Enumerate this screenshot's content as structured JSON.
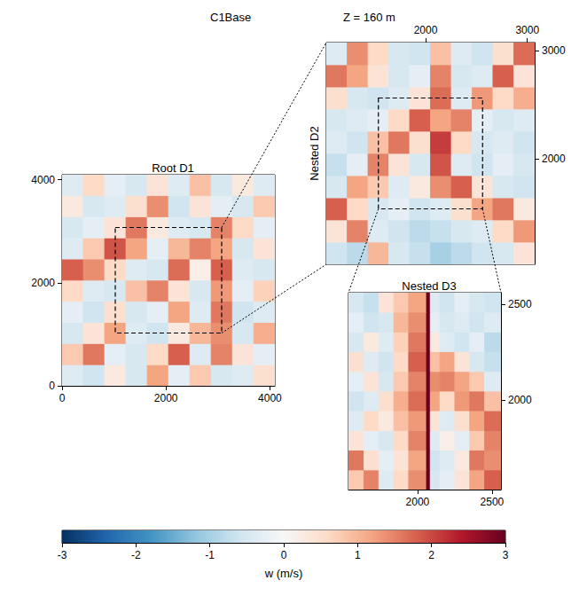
{
  "figure": {
    "title": "C1Base",
    "subtitle": "Z = 160 m"
  },
  "colorbar": {
    "label": "w (m/s)",
    "range": [
      -3,
      3
    ],
    "ticks": [
      -3,
      -2,
      -1,
      0,
      1,
      2,
      3
    ]
  },
  "chart_data": [
    {
      "type": "heatmap",
      "title": "Root D1",
      "xlim": [
        0,
        4096
      ],
      "ylim": [
        0,
        4096
      ],
      "xticks": [
        0,
        2000,
        4000
      ],
      "yticks": [
        0,
        2000,
        4000
      ],
      "x_edges": [
        0,
        410,
        820,
        1230,
        1640,
        2050,
        2460,
        2870,
        3280,
        3690,
        4096
      ],
      "y_edges": [
        0,
        410,
        820,
        1230,
        1640,
        2050,
        2460,
        2870,
        3280,
        3690,
        4096
      ],
      "w": [
        [
          -0.4,
          -0.6,
          0.3,
          -0.5,
          1.2,
          -0.3,
          0.8,
          -0.5,
          -0.4,
          0.5
        ],
        [
          0.8,
          1.6,
          -0.3,
          -0.5,
          0.6,
          1.8,
          -0.4,
          1.5,
          0.4,
          -0.3
        ],
        [
          -0.5,
          0.4,
          1.2,
          -0.4,
          -0.6,
          0.3,
          1.0,
          1.4,
          -0.5,
          1.1
        ],
        [
          -0.3,
          -0.6,
          0.5,
          -0.5,
          -0.3,
          1.2,
          -0.4,
          1.6,
          -0.6,
          -0.4
        ],
        [
          0.6,
          -0.4,
          -0.5,
          0.9,
          1.5,
          0.4,
          -0.5,
          1.3,
          -0.3,
          0.7
        ],
        [
          1.8,
          1.4,
          0.6,
          -0.4,
          -0.5,
          1.7,
          0.2,
          1.8,
          -0.4,
          -0.5
        ],
        [
          -0.4,
          0.8,
          1.9,
          1.2,
          -0.3,
          1.0,
          1.5,
          1.2,
          -0.5,
          0.4
        ],
        [
          -0.5,
          -0.3,
          0.4,
          1.6,
          0.3,
          -0.4,
          -0.5,
          1.5,
          0.6,
          -0.3
        ],
        [
          0.3,
          -0.5,
          -0.4,
          0.5,
          1.4,
          -0.6,
          0.4,
          -0.3,
          -0.5,
          0.8
        ],
        [
          -0.4,
          0.6,
          -0.3,
          -0.5,
          0.4,
          -0.4,
          0.9,
          -0.5,
          0.3,
          -0.4
        ]
      ]
    },
    {
      "type": "heatmap",
      "title": "Nested D2",
      "xlim": [
        1024,
        3072
      ],
      "ylim": [
        1024,
        3072
      ],
      "xticks": [
        2000,
        3000
      ],
      "yticks": [
        2000,
        3000
      ],
      "x_edges": [
        1024,
        1229,
        1434,
        1638,
        1843,
        2048,
        2253,
        2458,
        2662,
        2867,
        3072
      ],
      "y_edges": [
        1024,
        1229,
        1434,
        1638,
        1843,
        2048,
        2253,
        2458,
        2662,
        2867,
        3072
      ],
      "w": [
        [
          -0.6,
          -0.8,
          1.0,
          -0.5,
          -0.7,
          -1.0,
          -0.8,
          -0.6,
          -0.5,
          0.4
        ],
        [
          0.4,
          1.5,
          -0.4,
          -0.6,
          -0.8,
          -0.7,
          -0.5,
          -0.4,
          0.6,
          1.3
        ],
        [
          1.8,
          0.6,
          -0.5,
          -0.3,
          -0.6,
          -0.4,
          0.5,
          1.2,
          1.6,
          0.3
        ],
        [
          -0.5,
          1.2,
          0.8,
          -0.4,
          0.3,
          1.4,
          1.8,
          0.4,
          -0.5,
          -0.6
        ],
        [
          -0.7,
          -0.3,
          1.5,
          0.4,
          -0.5,
          1.9,
          -0.4,
          -0.6,
          -0.3,
          -0.5
        ],
        [
          -0.4,
          -0.6,
          0.9,
          1.6,
          0.5,
          2.1,
          0.6,
          -0.5,
          -0.4,
          -0.6
        ],
        [
          -0.5,
          -0.4,
          -0.3,
          0.6,
          1.8,
          1.2,
          1.5,
          -0.3,
          -0.5,
          -0.4
        ],
        [
          0.5,
          -0.5,
          -0.6,
          -0.4,
          0.4,
          1.7,
          -0.4,
          1.3,
          0.6,
          1.1
        ],
        [
          1.6,
          1.2,
          0.4,
          -0.5,
          -0.3,
          1.5,
          -0.5,
          -0.4,
          1.8,
          0.4
        ],
        [
          -0.4,
          1.4,
          0.6,
          -0.5,
          -0.6,
          0.9,
          -0.4,
          -0.6,
          0.5,
          1.7
        ]
      ]
    },
    {
      "type": "heatmap",
      "title": "Nested D3",
      "xlim": [
        1536,
        2560
      ],
      "ylim": [
        1536,
        2560
      ],
      "xticks": [
        2000,
        2500
      ],
      "yticks": [
        2000,
        2500
      ],
      "x_edges": [
        1536,
        1640,
        1740,
        1840,
        1940,
        2060,
        2085,
        2150,
        2250,
        2350,
        2450,
        2560
      ],
      "y_edges": [
        1536,
        1638,
        1741,
        1843,
        1946,
        2048,
        2150,
        2253,
        2355,
        2458,
        2560
      ],
      "w": [
        [
          0.8,
          1.5,
          -0.4,
          0.6,
          1.4,
          3,
          -0.5,
          -0.3,
          0.4,
          1.2,
          1.8
        ],
        [
          1.6,
          0.5,
          -0.3,
          0.4,
          1.2,
          3,
          -0.6,
          -0.4,
          0.3,
          1.6,
          1.4
        ],
        [
          0.4,
          -0.3,
          -0.5,
          0.6,
          1.5,
          3,
          -0.4,
          0.2,
          -0.3,
          0.8,
          1.5
        ],
        [
          -0.4,
          0.6,
          0.3,
          0.9,
          1.3,
          3,
          0.4,
          -0.4,
          0.5,
          1.2,
          1.7
        ],
        [
          -0.6,
          -0.4,
          0.5,
          1.1,
          1.7,
          3,
          1.2,
          0.6,
          1.3,
          1.6,
          0.9
        ],
        [
          -0.3,
          0.4,
          -0.5,
          0.8,
          1.5,
          3,
          1.4,
          1.5,
          1.2,
          0.8,
          -0.4
        ],
        [
          0.5,
          -0.4,
          -0.6,
          0.6,
          1.8,
          3,
          0.9,
          1.2,
          0.4,
          -0.5,
          -0.7
        ],
        [
          -0.5,
          0.3,
          -0.4,
          0.7,
          1.6,
          3,
          0.3,
          -0.4,
          -0.6,
          -0.3,
          -0.8
        ],
        [
          -0.3,
          -0.6,
          -0.5,
          1.0,
          1.4,
          3,
          -0.3,
          -0.5,
          -0.4,
          -0.6,
          -0.4
        ],
        [
          -0.5,
          -0.7,
          0.4,
          0.8,
          1.2,
          3,
          -0.4,
          -0.6,
          -0.3,
          -0.5,
          -0.6
        ]
      ]
    }
  ]
}
